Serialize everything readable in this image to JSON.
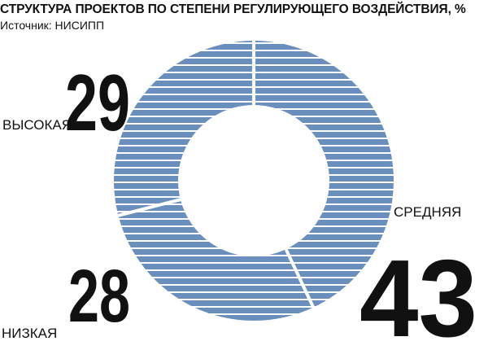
{
  "title": "СТРУКТУРА ПРОЕКТОВ ПО СТЕПЕНИ РЕГУЛИРУЮЩЕГО ВОЗДЕЙСТВИЯ, %",
  "source": "Источник: НИСИПП",
  "colors": {
    "ring": "#6b8fbc",
    "stripe": "#ffffff",
    "text": "#111111"
  },
  "chart_data": {
    "type": "pie",
    "style": "donut",
    "title": "СТРУКТУРА ПРОЕКТОВ ПО СТЕПЕНИ РЕГУЛИРУЮЩЕГО ВОЗДЕЙСТВИЯ, %",
    "categories": [
      "Высокая",
      "Средняя",
      "Низкая"
    ],
    "slices": [
      {
        "label": "ВЫСОКАЯ",
        "value": 29
      },
      {
        "label": "СРЕДНЯЯ",
        "value": 43
      },
      {
        "label": "НИЗКАЯ",
        "value": 28
      }
    ]
  }
}
